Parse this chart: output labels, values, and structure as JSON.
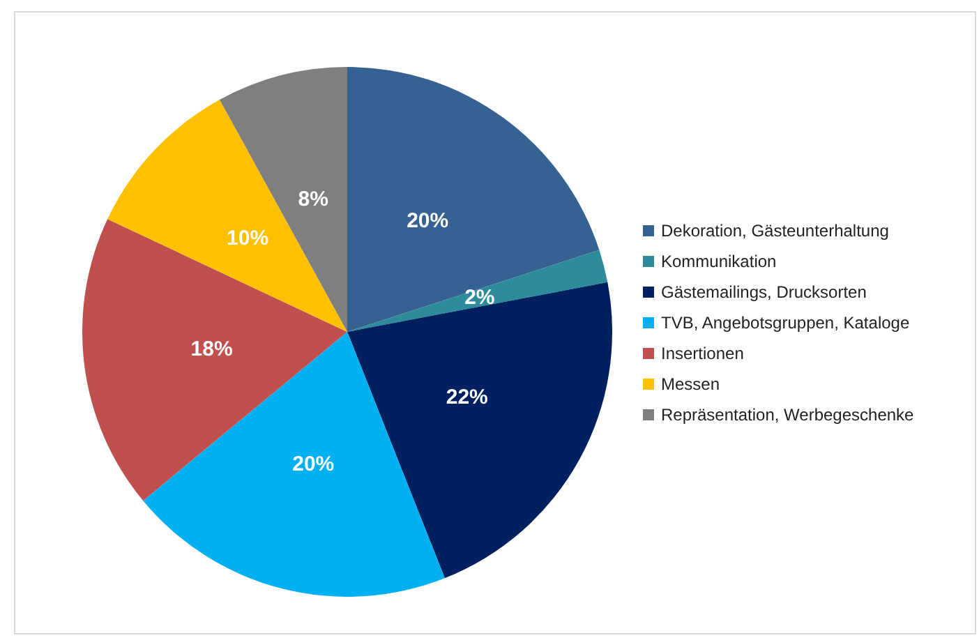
{
  "chart_data": {
    "type": "pie",
    "categories": [
      "Dekoration, Gästeunterhaltung",
      "Kommunikation",
      "Gästemailings, Drucksorten",
      "TVB, Angebotsgruppen, Kataloge",
      "Insertionen",
      "Messen",
      "Repräsentation, Werbegeschenke"
    ],
    "values": [
      20,
      2,
      22,
      20,
      18,
      10,
      8
    ],
    "colors": [
      "#356193",
      "#2e8b9a",
      "#002060",
      "#00b0f0",
      "#c0504d",
      "#ffc000",
      "#7f7f7f"
    ],
    "value_labels": [
      "20%",
      "2%",
      "22%",
      "20%",
      "18%",
      "10%",
      "8%"
    ],
    "legend": "right"
  }
}
